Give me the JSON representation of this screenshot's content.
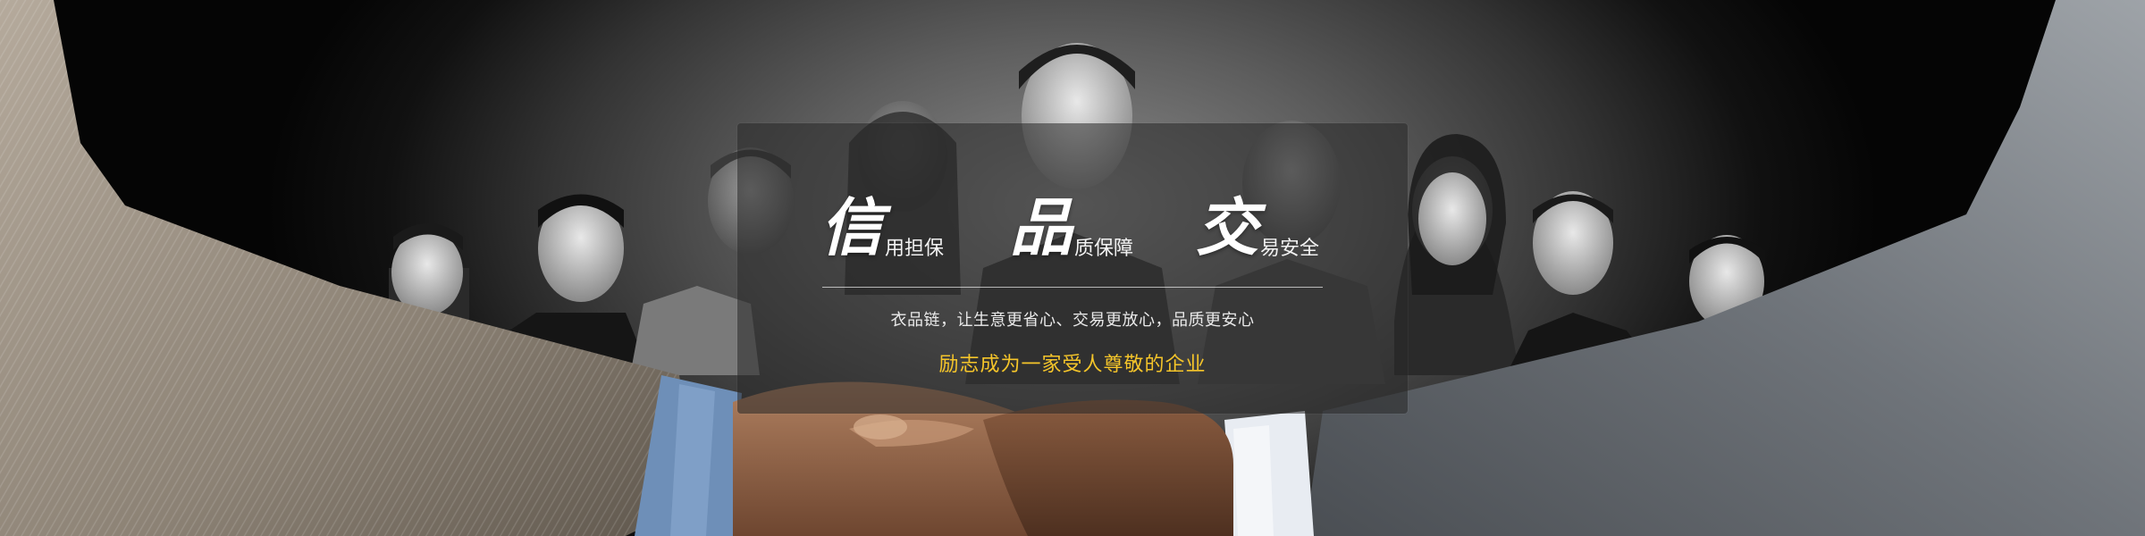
{
  "slogan": {
    "part1": {
      "big": "信",
      "small": "用担保"
    },
    "part2": {
      "big": "品",
      "small": "质保障"
    },
    "part3": {
      "big": "交",
      "small": "易安全"
    }
  },
  "tagline": "衣品链，让生意更省心、交易更放心，品质更安心",
  "motto": "励志成为一家受人尊敬的企业",
  "colors": {
    "motto": "#f5c52a",
    "panel": "#282828",
    "text": "#ffffff"
  }
}
